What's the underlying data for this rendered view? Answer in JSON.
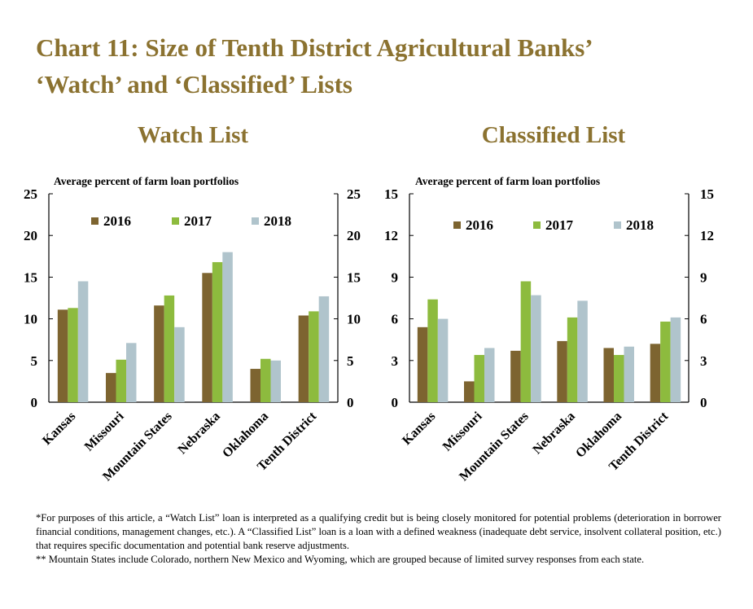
{
  "title_lines": [
    "Chart 11: Size of Tenth District Agricultural Banks’",
    "‘Watch’ and ‘Classified’ Lists"
  ],
  "colors": {
    "title": "#8b7230",
    "s2016": "#7d6430",
    "s2017": "#8dbb3e",
    "s2018": "#b0c4cc"
  },
  "chart_data": [
    {
      "type": "bar",
      "title": "Watch List",
      "ylabel": "Average percent of farm loan portfolios",
      "categories": [
        "Kansas",
        "Missouri",
        "Mountain States",
        "Nebraska",
        "Oklahoma",
        "Tenth District"
      ],
      "series": [
        {
          "name": "2016",
          "values": [
            11.1,
            3.5,
            11.6,
            15.5,
            4.0,
            10.4
          ]
        },
        {
          "name": "2017",
          "values": [
            11.3,
            5.1,
            12.8,
            16.8,
            5.2,
            10.9
          ]
        },
        {
          "name": "2018",
          "values": [
            14.5,
            7.1,
            9.0,
            18.0,
            5.0,
            12.7
          ]
        }
      ],
      "ylim": [
        0,
        25
      ],
      "yticks": [
        0,
        5,
        10,
        15,
        20,
        25
      ],
      "legend_position": "top",
      "grid": false
    },
    {
      "type": "bar",
      "title": "Classified List",
      "ylabel": "Average percent of farm loan portfolios",
      "categories": [
        "Kansas",
        "Missouri",
        "Mountain States",
        "Nebraska",
        "Oklahoma",
        "Tenth District"
      ],
      "series": [
        {
          "name": "2016",
          "values": [
            5.4,
            1.5,
            3.7,
            4.4,
            3.9,
            4.2
          ]
        },
        {
          "name": "2017",
          "values": [
            7.4,
            3.4,
            8.7,
            6.1,
            3.4,
            5.8
          ]
        },
        {
          "name": "2018",
          "values": [
            6.0,
            3.9,
            7.7,
            7.3,
            4.0,
            6.1
          ]
        }
      ],
      "ylim": [
        0,
        15
      ],
      "yticks": [
        0,
        3,
        6,
        9,
        12,
        15
      ],
      "legend_position": "top",
      "grid": false
    }
  ],
  "footnotes": [
    "*For purposes of this article, a “Watch List” loan is interpreted as a qualifying credit but is being closely monitored for potential problems (deterioration in borrower financial conditions, management changes, etc.). A “Classified List” loan is a loan with a defined weakness (inadequate debt service, insolvent collateral position, etc.) that requires specific documentation and potential bank reserve adjustments.",
    "** Mountain States include Colorado, northern New Mexico and Wyoming, which are grouped because of limited survey responses from each state."
  ]
}
